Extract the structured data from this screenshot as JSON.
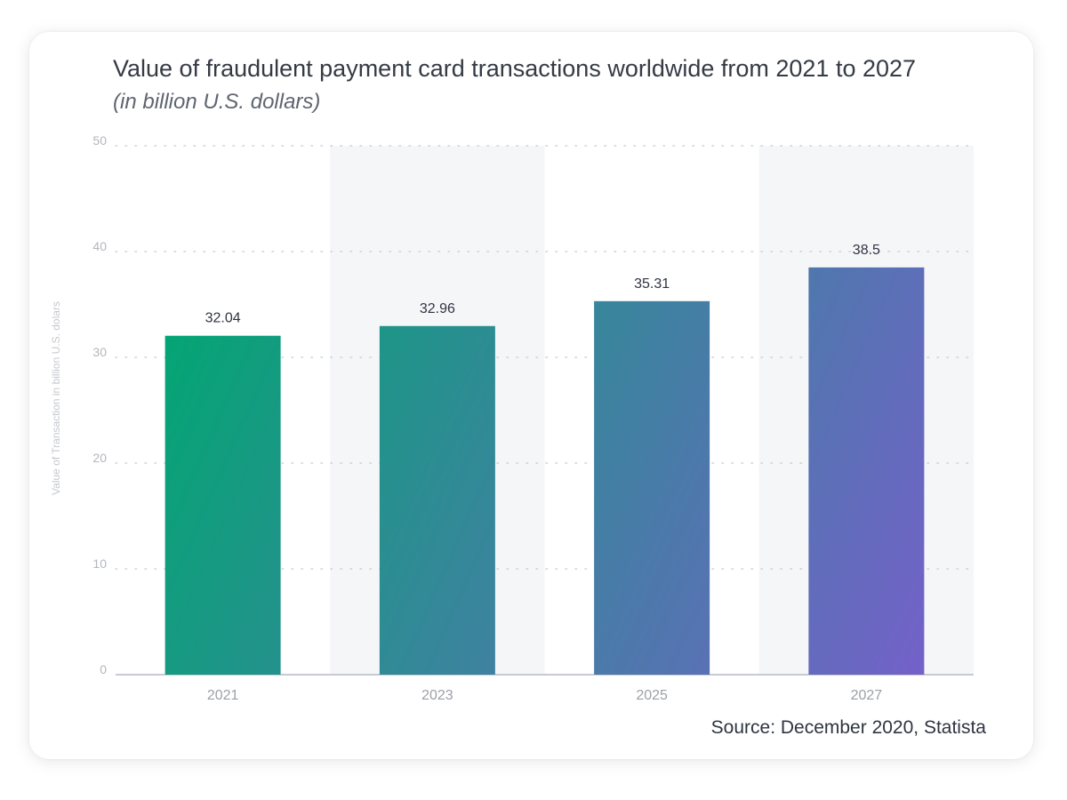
{
  "title": "Value of fraudulent payment card transactions worldwide from 2021 to 2027",
  "subtitle": "(in billion U.S. dollars)",
  "source": "Source: December 2020, Statista",
  "colors": {
    "bar_gradient_start": "#04a574",
    "bar_gradient_end": "#7461c9",
    "band": "#f5f6f8",
    "grid": "#cfd2d6",
    "baseline": "#b7bac3"
  },
  "chart_data": {
    "type": "bar",
    "categories": [
      "2021",
      "2023",
      "2025",
      "2027"
    ],
    "values": [
      32.04,
      32.96,
      35.31,
      38.5
    ],
    "value_labels": [
      "32.04",
      "32.96",
      "35.31",
      "38.5"
    ],
    "ylabel": "Value of Transaction in billion U.S. dolars",
    "xlabel": "",
    "ylim": [
      0,
      50
    ],
    "yticks": [
      0,
      10,
      20,
      30,
      40,
      50
    ],
    "grid": true,
    "grid_style": "dotted",
    "alternating_bands": true,
    "legend": "none"
  }
}
